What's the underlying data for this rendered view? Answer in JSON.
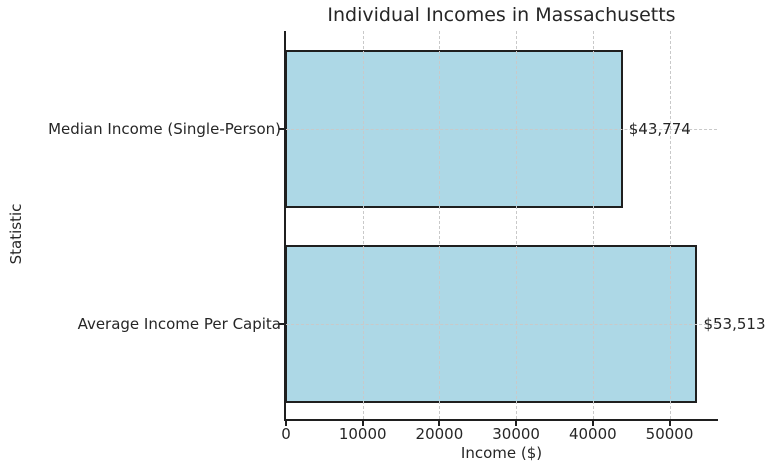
{
  "chart_data": {
    "type": "bar",
    "orientation": "horizontal",
    "title": "Individual Incomes in Massachusetts",
    "xlabel": "Income ($)",
    "ylabel": "Statistic",
    "categories": [
      "Median Income (Single-Person)",
      "Average Income Per Capita"
    ],
    "values": [
      43774,
      53513
    ],
    "value_labels": [
      "$43,774",
      "$53,513"
    ],
    "xlim": [
      0,
      56188
    ],
    "xticks": [
      0,
      10000,
      20000,
      30000,
      40000,
      50000
    ],
    "grid": "dashed, drawn above bars, vertical at xticks and horizontal at bar centers",
    "legend": "none",
    "colors": {
      "bar_fill": "#ADD8E6",
      "bar_edge": "#1f1f1f",
      "grid": "#c9c9c9",
      "text": "#262626",
      "background": "#ffffff"
    }
  }
}
